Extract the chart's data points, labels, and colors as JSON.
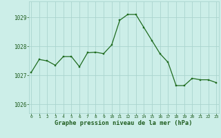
{
  "x": [
    0,
    1,
    2,
    3,
    4,
    5,
    6,
    7,
    8,
    9,
    10,
    11,
    12,
    13,
    14,
    15,
    16,
    17,
    18,
    19,
    20,
    21,
    22,
    23
  ],
  "y": [
    1027.1,
    1027.55,
    1027.5,
    1027.35,
    1027.65,
    1027.65,
    1027.3,
    1027.78,
    1027.8,
    1027.75,
    1028.05,
    1028.9,
    1029.1,
    1029.1,
    1028.65,
    1028.2,
    1027.75,
    1027.45,
    1026.65,
    1026.65,
    1026.9,
    1026.85,
    1026.85,
    1026.75
  ],
  "line_color": "#1e6b1e",
  "marker_color": "#1e6b1e",
  "bg_color": "#cceee8",
  "grid_color": "#aad4ce",
  "xlabel": "Graphe pression niveau de la mer (hPa)",
  "xlabel_color": "#1e5c1e",
  "tick_color": "#1e5c1e",
  "yticks": [
    1026,
    1027,
    1028,
    1029
  ],
  "xticks": [
    0,
    1,
    2,
    3,
    4,
    5,
    6,
    7,
    8,
    9,
    10,
    11,
    12,
    13,
    14,
    15,
    16,
    17,
    18,
    19,
    20,
    21,
    22,
    23
  ],
  "ylim": [
    1025.7,
    1029.55
  ],
  "xlim": [
    -0.3,
    23.3
  ]
}
